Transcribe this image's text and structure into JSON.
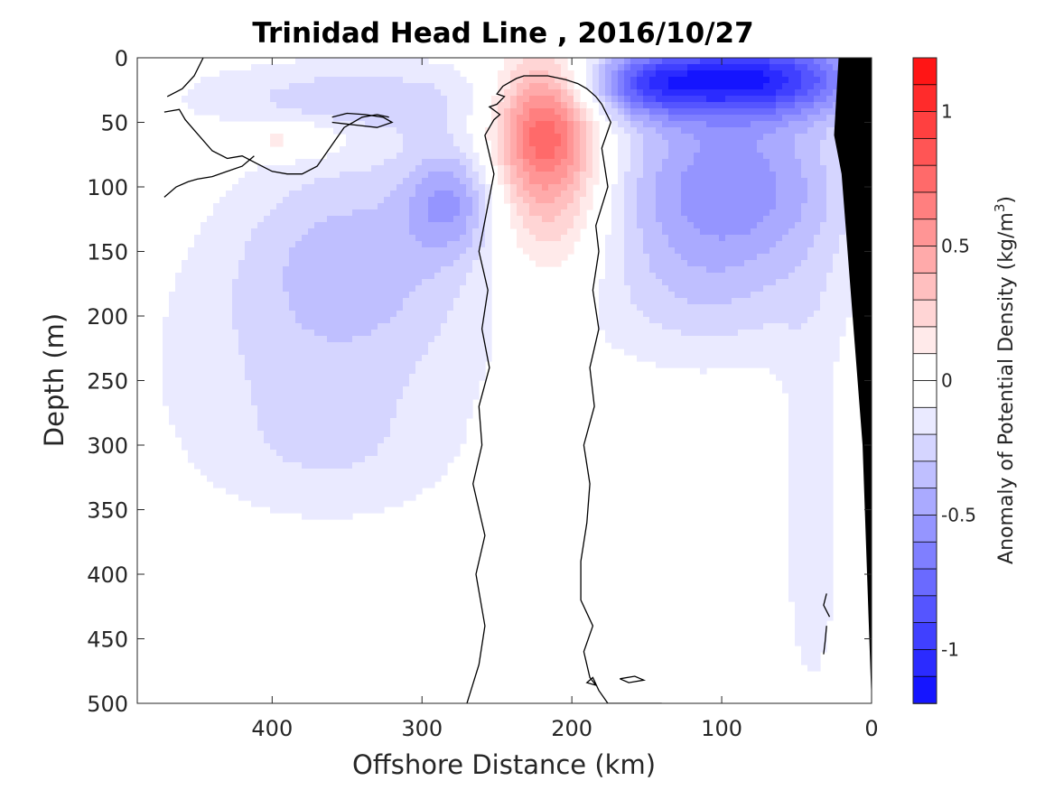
{
  "chart_data": {
    "type": "heatmap",
    "title": "Trinidad Head Line , 2016/10/27",
    "xlabel": "Offshore Distance (km)",
    "ylabel": "Depth (m)",
    "colorbar_label": "Anomaly of Potential Density (kg/m",
    "colorbar_label_superscript": "3",
    "colorbar_label_suffix": ")",
    "xlim": [
      490,
      0
    ],
    "ylim": [
      0,
      500
    ],
    "y_reversed": true,
    "x_reversed": true,
    "x_ticks": [
      400,
      300,
      200,
      100,
      0
    ],
    "x_tick_labels": [
      "400",
      "300",
      "200",
      "100",
      "0"
    ],
    "y_ticks": [
      0,
      50,
      100,
      150,
      200,
      250,
      300,
      350,
      400,
      450,
      500
    ],
    "y_tick_labels": [
      "0",
      "50",
      "100",
      "150",
      "200",
      "250",
      "300",
      "350",
      "400",
      "450",
      "500"
    ],
    "colorbar_range": [
      -1.2,
      1.2
    ],
    "colorbar_step": 0.1,
    "colorbar_ticks": [
      1,
      0.5,
      0,
      -0.5,
      -1
    ],
    "colorbar_tick_labels": [
      "1",
      "0.5",
      "0",
      "-0.5",
      "-1"
    ],
    "colormap": {
      "negative": "#0000ff",
      "zero": "#ffffff",
      "positive": "#ff0000"
    },
    "grid": false,
    "features": [
      {
        "kind": "positive_anomaly",
        "x_center": 218,
        "depth_center": 50,
        "peak_value": 0.7
      },
      {
        "kind": "positive_anomaly",
        "x_center": 390,
        "depth_center": 62,
        "peak_value": 0.25
      },
      {
        "kind": "negative_anomaly",
        "x_center": 80,
        "depth_center": 15,
        "peak_value": -1.0
      },
      {
        "kind": "negative_anomaly",
        "x_center": 95,
        "depth_center": 90,
        "peak_value": -0.55
      },
      {
        "kind": "negative_anomaly",
        "x_center": 340,
        "depth_center": 140,
        "peak_value": -0.3
      }
    ],
    "zero_contours": [
      {
        "x": [
          270,
          262,
          258,
          264,
          258,
          266,
          260,
          262,
          255,
          260,
          256,
          262,
          257,
          252,
          258,
          252,
          248,
          255,
          250,
          245,
          250,
          246,
          243,
          237,
          232,
          226,
          216,
          204,
          196,
          190,
          184,
          180,
          174,
          180,
          176,
          184,
          182,
          186,
          182,
          188,
          185,
          192,
          188,
          190,
          194,
          194,
          186,
          192,
          188,
          184,
          190,
          186,
          182,
          176,
          170,
          163,
          140
        ],
        "y": [
          500,
          470,
          440,
          400,
          370,
          330,
          300,
          270,
          240,
          210,
          180,
          150,
          120,
          90,
          60,
          48,
          44,
          38,
          36,
          30,
          28,
          22,
          20,
          16,
          14,
          14,
          14,
          17,
          20,
          24,
          30,
          36,
          50,
          70,
          100,
          130,
          150,
          180,
          210,
          240,
          270,
          300,
          330,
          360,
          390,
          420,
          440,
          460,
          480,
          486,
          484,
          480,
          490,
          500,
          500,
          500,
          500
        ]
      },
      {
        "x": [
          470,
          460,
          452,
          446
        ],
        "y": [
          30,
          24,
          14,
          0
        ]
      },
      {
        "x": [
          472,
          462,
          458,
          452,
          440,
          430,
          420,
          410,
          400,
          390,
          380,
          370,
          364,
          352,
          340,
          330,
          322
        ],
        "y": [
          42,
          40,
          48,
          56,
          72,
          78,
          76,
          82,
          88,
          90,
          90,
          84,
          74,
          54,
          46,
          44,
          46
        ]
      },
      {
        "x": [
          472,
          464,
          456,
          450,
          440,
          430,
          420,
          412
        ],
        "y": [
          108,
          100,
          96,
          94,
          92,
          88,
          84,
          76
        ]
      },
      {
        "x": [
          360,
          350,
          338,
          326,
          320,
          330,
          345,
          360
        ],
        "y": [
          46,
          43,
          44,
          46,
          50,
          54,
          52,
          50
        ]
      },
      {
        "x": [
          168,
          158,
          152,
          162,
          168
        ],
        "y": [
          481,
          479,
          482,
          484,
          481
        ]
      },
      {
        "x": [
          30,
          32,
          28
        ],
        "y": [
          415,
          424,
          433
        ]
      },
      {
        "x": [
          30,
          31,
          32
        ],
        "y": [
          440,
          452,
          462
        ]
      }
    ],
    "bathymetry": {
      "x": [
        22,
        25,
        20,
        6,
        0,
        0
      ],
      "y": [
        0,
        60,
        90,
        300,
        500,
        0
      ],
      "color": "#000000",
      "note": "seafloor polygon drawn in black near shore"
    }
  }
}
